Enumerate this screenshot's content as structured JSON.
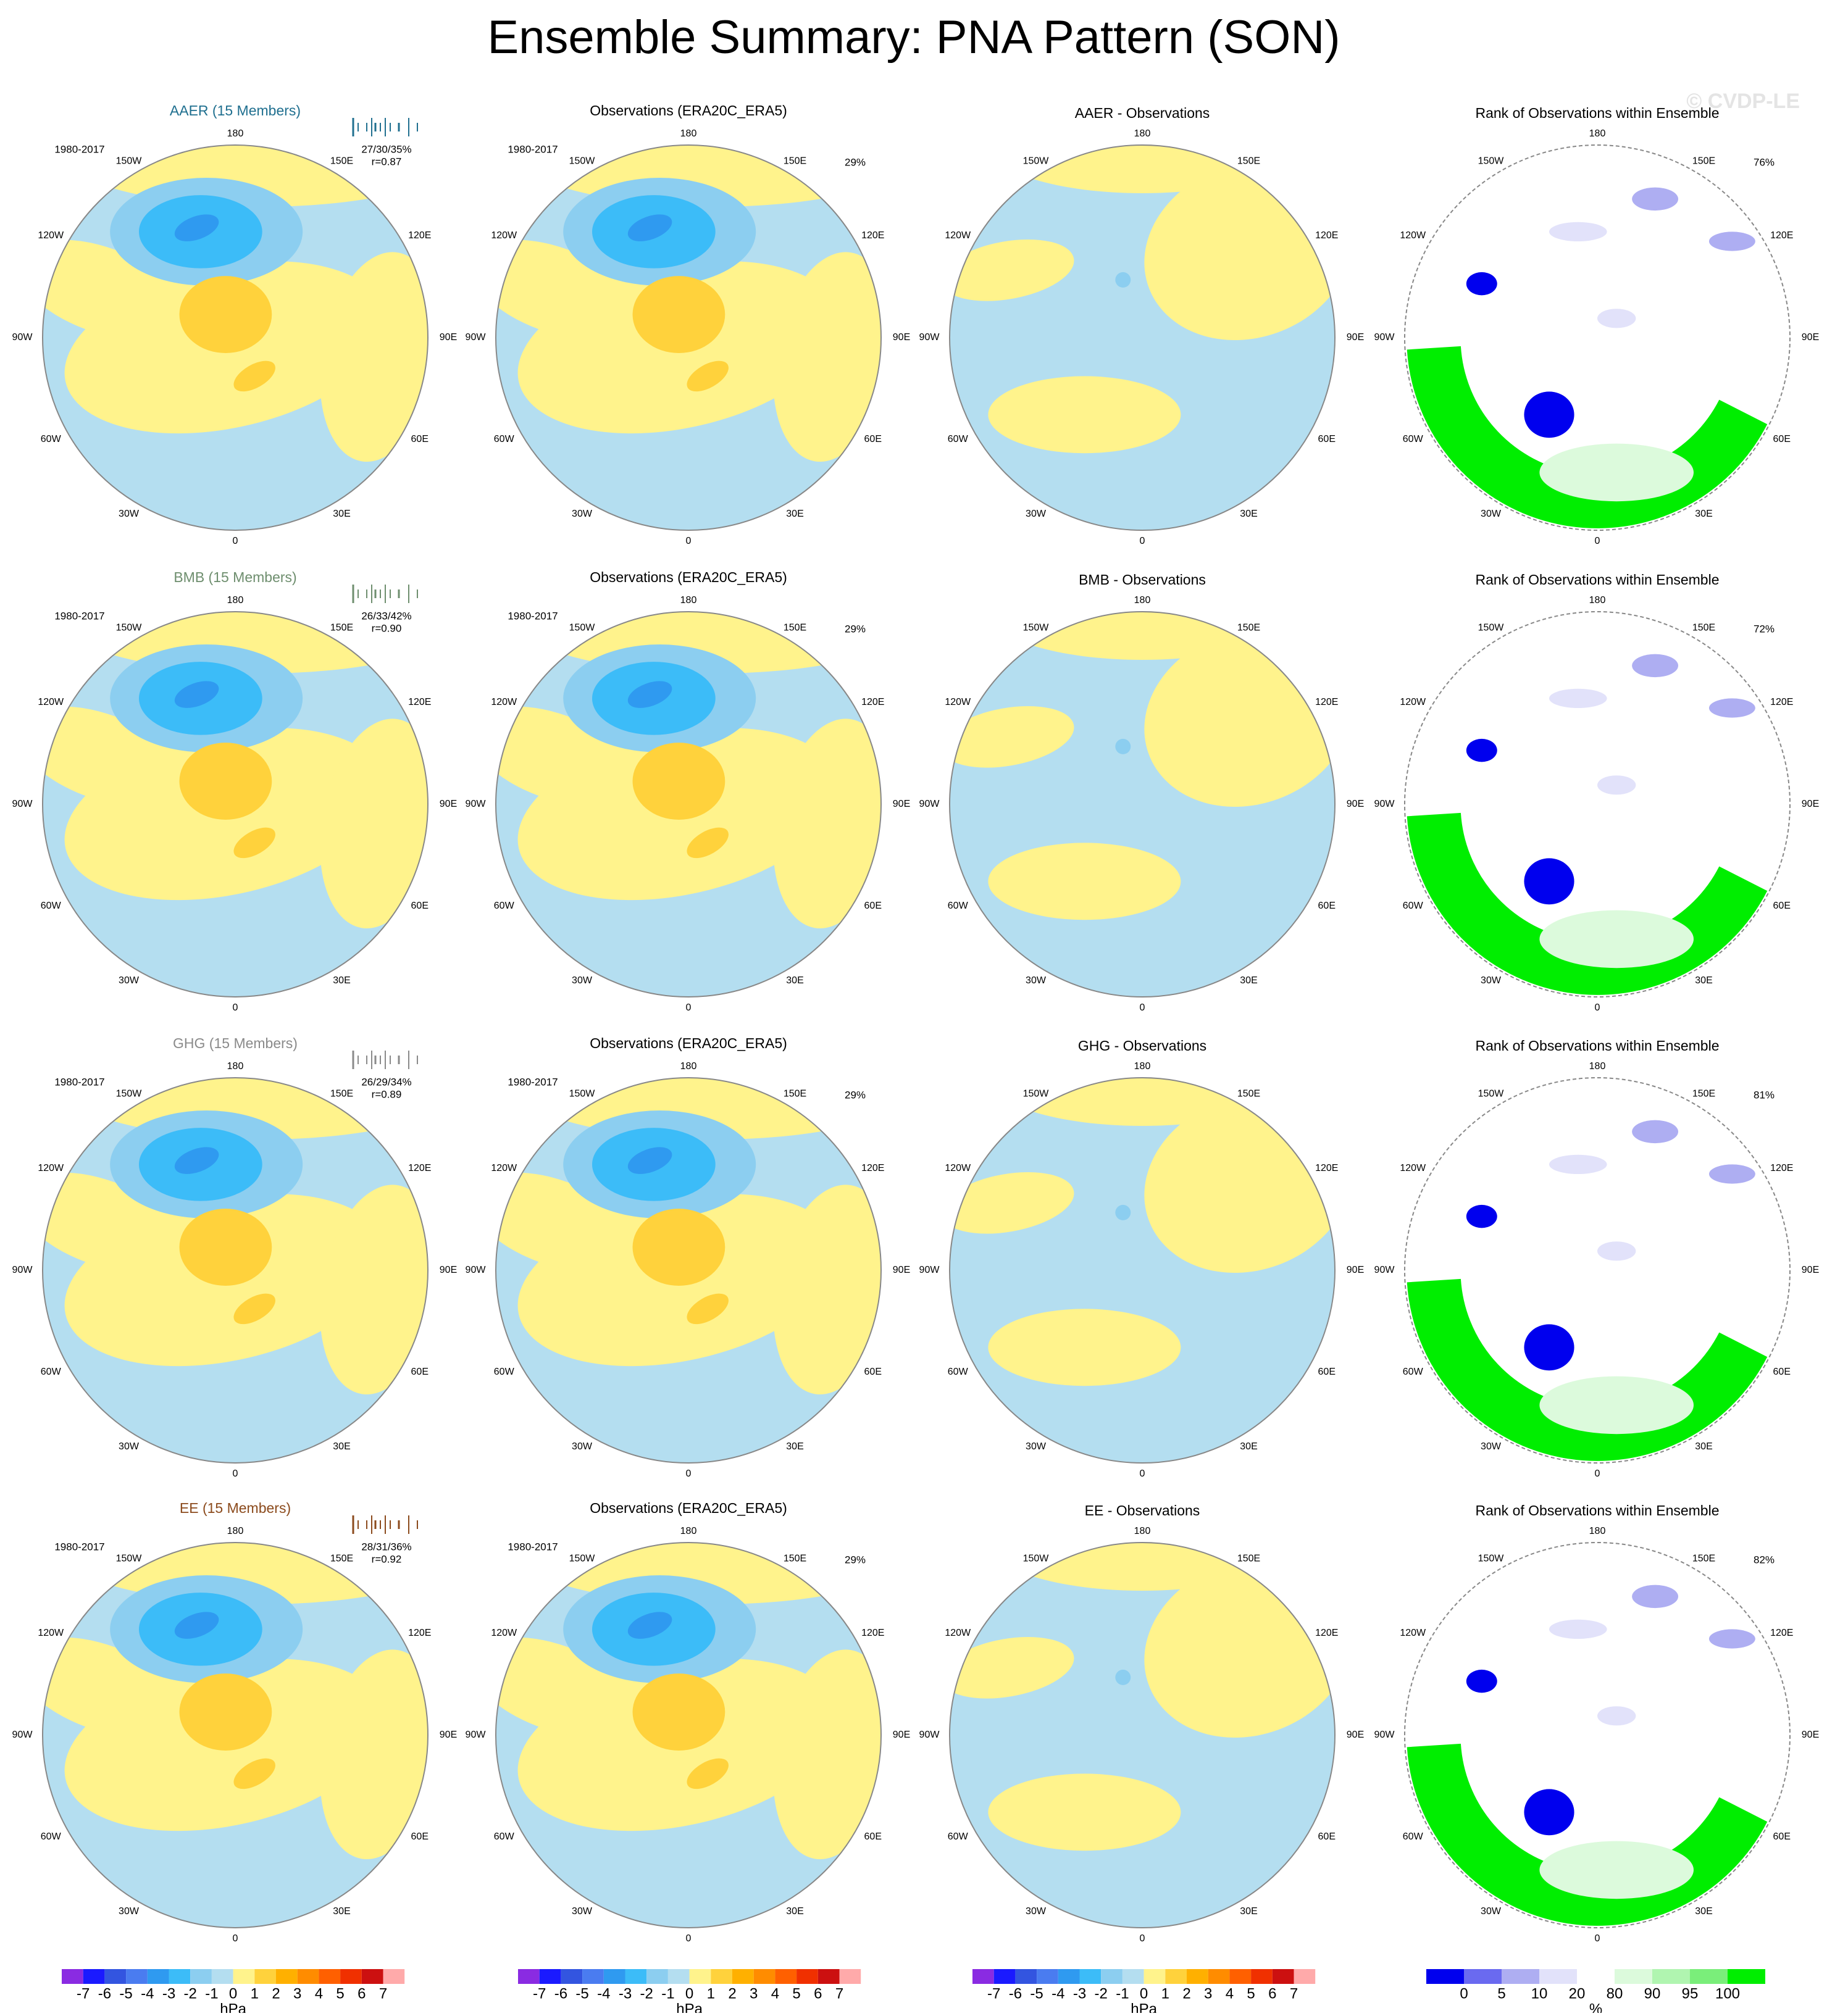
{
  "title": "Ensemble Summary: PNA Pattern (SON)",
  "watermark": "© CVDP-LE",
  "lon_labels": [
    "180",
    "150E",
    "120E",
    "90E",
    "60E",
    "30E",
    "0",
    "30W",
    "60W",
    "90W",
    "120W",
    "150W"
  ],
  "rows": [
    {
      "model_title": "AAER (15 Members)",
      "model_color": "#1f6f8f",
      "period": "1980-2017",
      "stats": "27/30/35%",
      "r": "r=0.87",
      "obs_title": "Observations (ERA20C_ERA5)",
      "obs_period": "1980-2017",
      "obs_pct": "29%",
      "diff_title": "AAER - Observations",
      "rank_title": "Rank of Observations within Ensemble",
      "rank_pct": "76%"
    },
    {
      "model_title": "BMB (15 Members)",
      "model_color": "#6e8e6e",
      "period": "1980-2017",
      "stats": "26/33/42%",
      "r": "r=0.90",
      "obs_title": "Observations (ERA20C_ERA5)",
      "obs_period": "1980-2017",
      "obs_pct": "29%",
      "diff_title": "BMB - Observations",
      "rank_title": "Rank of Observations within Ensemble",
      "rank_pct": "72%"
    },
    {
      "model_title": "GHG (15 Members)",
      "model_color": "#8a8a8a",
      "period": "1980-2017",
      "stats": "26/29/34%",
      "r": "r=0.89",
      "obs_title": "Observations (ERA20C_ERA5)",
      "obs_period": "1980-2017",
      "obs_pct": "29%",
      "diff_title": "GHG - Observations",
      "rank_title": "Rank of Observations within Ensemble",
      "rank_pct": "81%"
    },
    {
      "model_title": "EE (15 Members)",
      "model_color": "#8b4a1c",
      "period": "1980-2017",
      "stats": "28/31/36%",
      "r": "r=0.92",
      "obs_title": "Observations (ERA20C_ERA5)",
      "obs_period": "1980-2017",
      "obs_pct": "29%",
      "diff_title": "EE - Observations",
      "rank_title": "Rank of Observations within Ensemble",
      "rank_pct": "82%"
    }
  ],
  "colorbars": [
    {
      "labels": [
        -7,
        -6,
        -5,
        -4,
        -3,
        -2,
        -1,
        0,
        1,
        2,
        3,
        4,
        5,
        6,
        7
      ],
      "unit": "hPa",
      "colors": [
        "#8a2be2",
        "#1a1aff",
        "#3355e0",
        "#4a7cf0",
        "#2f9af0",
        "#3cbcf8",
        "#8ccef0",
        "#b4def0",
        "#fff38c",
        "#ffd23c",
        "#ffb000",
        "#ff8c00",
        "#ff6000",
        "#f03000",
        "#cc1010",
        "#ffaaaa"
      ]
    },
    {
      "labels": [
        -7,
        -6,
        -5,
        -4,
        -3,
        -2,
        -1,
        0,
        1,
        2,
        3,
        4,
        5,
        6,
        7
      ],
      "unit": "hPa",
      "colors": [
        "#8a2be2",
        "#1a1aff",
        "#3355e0",
        "#4a7cf0",
        "#2f9af0",
        "#3cbcf8",
        "#8ccef0",
        "#b4def0",
        "#fff38c",
        "#ffd23c",
        "#ffb000",
        "#ff8c00",
        "#ff6000",
        "#f03000",
        "#cc1010",
        "#ffaaaa"
      ]
    },
    {
      "labels": [
        -7,
        -6,
        -5,
        -4,
        -3,
        -2,
        -1,
        0,
        1,
        2,
        3,
        4,
        5,
        6,
        7
      ],
      "unit": "hPa",
      "colors": [
        "#8a2be2",
        "#1a1aff",
        "#3355e0",
        "#4a7cf0",
        "#2f9af0",
        "#3cbcf8",
        "#8ccef0",
        "#b4def0",
        "#fff38c",
        "#ffd23c",
        "#ffb000",
        "#ff8c00",
        "#ff6000",
        "#f03000",
        "#cc1010",
        "#ffaaaa"
      ]
    },
    {
      "labels": [
        0,
        5,
        10,
        20,
        80,
        90,
        95,
        100
      ],
      "unit": "%",
      "colors": [
        "#0000ee",
        "#6a6af0",
        "#aeaef2",
        "#e2e2fa",
        "#ffffff",
        "#dcfadc",
        "#b0f5b0",
        "#7aee7a",
        "#00ee00"
      ]
    }
  ]
}
